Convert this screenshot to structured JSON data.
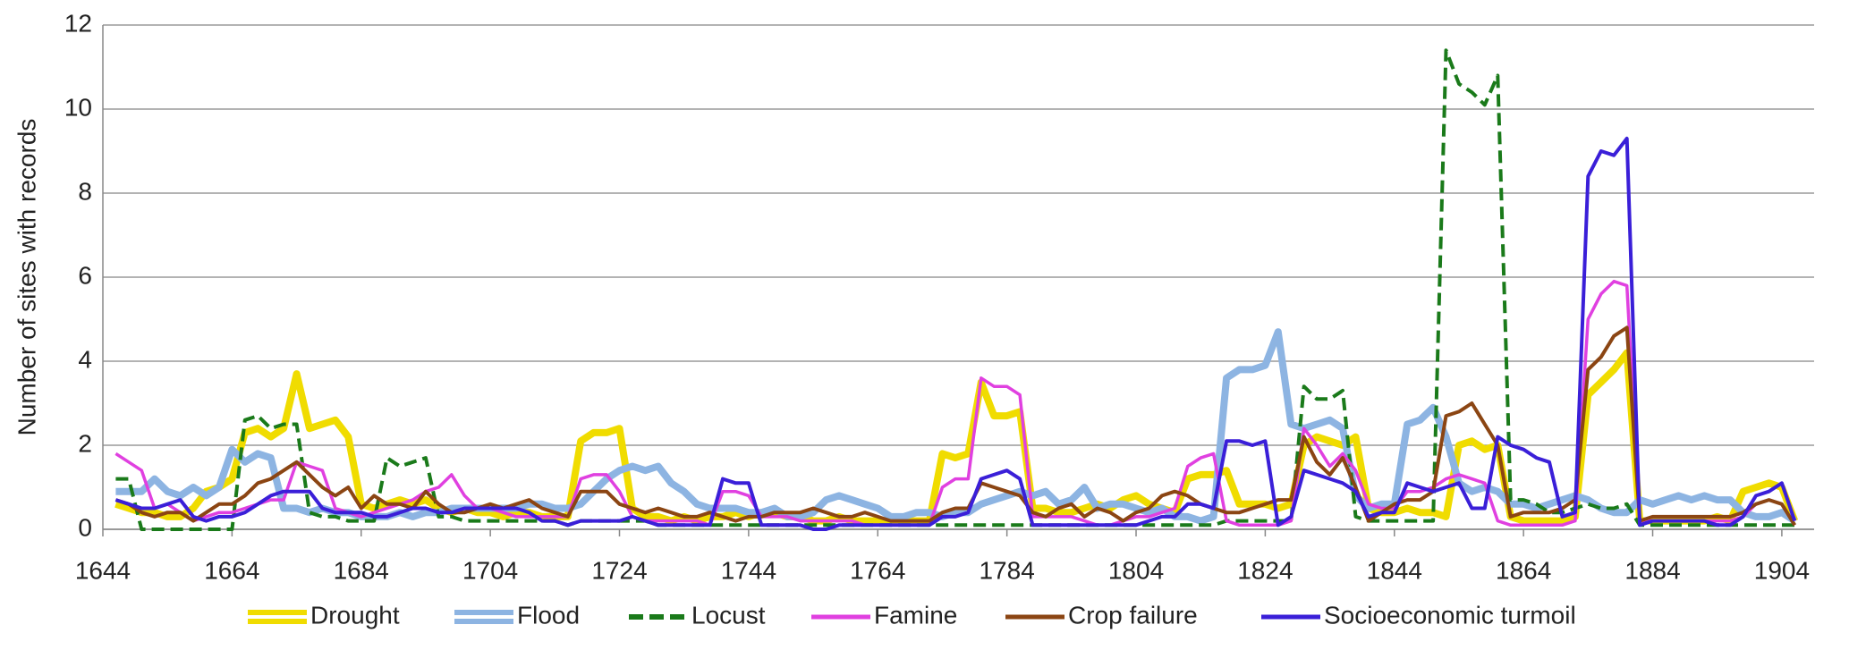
{
  "chart_data": {
    "type": "line",
    "y_label": "Number of sites with records",
    "xlim": [
      1644,
      1909
    ],
    "ylim": [
      0,
      12
    ],
    "xticks": [
      1644,
      1664,
      1684,
      1704,
      1724,
      1744,
      1764,
      1784,
      1804,
      1824,
      1844,
      1864,
      1884,
      1904
    ],
    "yticks": [
      0,
      2,
      4,
      6,
      8,
      10,
      12
    ],
    "grid": true,
    "legend": "bottom",
    "x": [
      1646,
      1648,
      1650,
      1652,
      1654,
      1656,
      1658,
      1660,
      1662,
      1664,
      1666,
      1668,
      1670,
      1672,
      1674,
      1676,
      1678,
      1680,
      1682,
      1684,
      1686,
      1688,
      1690,
      1692,
      1694,
      1696,
      1698,
      1700,
      1702,
      1704,
      1706,
      1708,
      1710,
      1712,
      1714,
      1716,
      1718,
      1720,
      1722,
      1724,
      1726,
      1728,
      1730,
      1732,
      1734,
      1736,
      1738,
      1740,
      1742,
      1744,
      1746,
      1748,
      1750,
      1752,
      1754,
      1756,
      1758,
      1760,
      1762,
      1764,
      1766,
      1768,
      1770,
      1772,
      1774,
      1776,
      1778,
      1780,
      1782,
      1784,
      1786,
      1788,
      1790,
      1792,
      1794,
      1796,
      1798,
      1800,
      1802,
      1804,
      1806,
      1808,
      1810,
      1812,
      1814,
      1816,
      1818,
      1820,
      1822,
      1824,
      1826,
      1828,
      1830,
      1832,
      1834,
      1836,
      1838,
      1840,
      1842,
      1844,
      1846,
      1848,
      1850,
      1852,
      1854,
      1856,
      1858,
      1860,
      1862,
      1864,
      1866,
      1868,
      1870,
      1872,
      1874,
      1876,
      1878,
      1880,
      1882,
      1884,
      1886,
      1888,
      1890,
      1892,
      1894,
      1896,
      1898,
      1900,
      1902,
      1904,
      1906
    ],
    "series": [
      {
        "name": "Drought",
        "color": "#f0dc00",
        "style": "double",
        "values": [
          0.6,
          0.5,
          0.4,
          0.4,
          0.3,
          0.3,
          0.5,
          0.9,
          1.0,
          1.2,
          2.3,
          2.4,
          2.2,
          2.4,
          3.7,
          2.4,
          2.5,
          2.6,
          2.2,
          0.6,
          0.5,
          0.6,
          0.7,
          0.6,
          0.7,
          0.5,
          0.4,
          0.5,
          0.4,
          0.4,
          0.3,
          0.4,
          0.4,
          0.3,
          0.3,
          0.3,
          2.1,
          2.3,
          2.3,
          2.4,
          0.5,
          0.3,
          0.3,
          0.2,
          0.3,
          0.2,
          0.3,
          0.3,
          0.4,
          0.3,
          0.4,
          0.4,
          0.3,
          0.3,
          0.2,
          0.2,
          0.3,
          0.2,
          0.2,
          0.2,
          0.2,
          0.2,
          0.2,
          0.2,
          1.8,
          1.7,
          1.8,
          3.5,
          2.7,
          2.7,
          2.8,
          0.5,
          0.5,
          0.4,
          0.4,
          0.5,
          0.6,
          0.5,
          0.7,
          0.8,
          0.6,
          0.5,
          0.4,
          1.2,
          1.3,
          1.3,
          1.4,
          0.6,
          0.6,
          0.6,
          0.5,
          0.6,
          2.0,
          2.2,
          2.1,
          2.0,
          2.2,
          0.5,
          0.4,
          0.4,
          0.5,
          0.4,
          0.4,
          0.3,
          2.0,
          2.1,
          1.9,
          2.0,
          0.3,
          0.2,
          0.2,
          0.2,
          0.2,
          0.3,
          3.2,
          3.5,
          3.8,
          4.2,
          0.2,
          0.2,
          0.2,
          0.2,
          0.2,
          0.2,
          0.3,
          0.2,
          0.9,
          1.0,
          1.1,
          1.0,
          0.2
        ]
      },
      {
        "name": "Flood",
        "color": "#8db4e2",
        "style": "double",
        "values": [
          0.9,
          0.9,
          0.9,
          1.2,
          0.9,
          0.8,
          1.0,
          0.8,
          1.0,
          1.9,
          1.6,
          1.8,
          1.7,
          0.5,
          0.5,
          0.4,
          0.5,
          0.4,
          0.4,
          0.3,
          0.3,
          0.3,
          0.4,
          0.3,
          0.4,
          0.4,
          0.5,
          0.5,
          0.5,
          0.5,
          0.5,
          0.5,
          0.6,
          0.6,
          0.5,
          0.5,
          0.6,
          0.9,
          1.2,
          1.4,
          1.5,
          1.4,
          1.5,
          1.1,
          0.9,
          0.6,
          0.5,
          0.5,
          0.5,
          0.4,
          0.4,
          0.5,
          0.3,
          0.3,
          0.4,
          0.7,
          0.8,
          0.7,
          0.6,
          0.5,
          0.3,
          0.3,
          0.4,
          0.4,
          0.3,
          0.4,
          0.4,
          0.6,
          0.7,
          0.8,
          0.9,
          0.8,
          0.9,
          0.6,
          0.7,
          1.0,
          0.5,
          0.6,
          0.6,
          0.5,
          0.4,
          0.5,
          0.3,
          0.3,
          0.2,
          0.3,
          3.6,
          3.8,
          3.8,
          3.9,
          4.7,
          2.5,
          2.4,
          2.5,
          2.6,
          2.4,
          0.8,
          0.5,
          0.6,
          0.6,
          2.5,
          2.6,
          2.9,
          2.2,
          1.1,
          0.9,
          1.0,
          0.9,
          0.6,
          0.6,
          0.5,
          0.6,
          0.7,
          0.8,
          0.7,
          0.5,
          0.4,
          0.4,
          0.7,
          0.6,
          0.7,
          0.8,
          0.7,
          0.8,
          0.7,
          0.7,
          0.4,
          0.3,
          0.3,
          0.4,
          0.2
        ]
      },
      {
        "name": "Locust",
        "color": "#1a7a1a",
        "style": "dashed",
        "values": [
          1.2,
          1.2,
          0,
          0,
          0,
          0,
          0,
          0,
          0,
          0,
          2.6,
          2.7,
          2.4,
          2.5,
          2.5,
          0.4,
          0.3,
          0.3,
          0.2,
          0.2,
          0.2,
          1.7,
          1.5,
          1.6,
          1.7,
          0.3,
          0.3,
          0.2,
          0.2,
          0.2,
          0.2,
          0.2,
          0.2,
          0.2,
          0.2,
          0.1,
          0.2,
          0.2,
          0.2,
          0.2,
          0.2,
          0.2,
          0.1,
          0.1,
          0.1,
          0.1,
          0.1,
          0.1,
          0.1,
          0.1,
          0.1,
          0.1,
          0.1,
          0.1,
          0.1,
          0.1,
          0.1,
          0.1,
          0.1,
          0.1,
          0.1,
          0.1,
          0.1,
          0.1,
          0.1,
          0.1,
          0.1,
          0.1,
          0.1,
          0.1,
          0.1,
          0.1,
          0.1,
          0.1,
          0.1,
          0.1,
          0.1,
          0.1,
          0.1,
          0.1,
          0.1,
          0.1,
          0.1,
          0.1,
          0.1,
          0.1,
          0.2,
          0.2,
          0.2,
          0.2,
          0.2,
          0.2,
          3.4,
          3.1,
          3.1,
          3.3,
          0.3,
          0.2,
          0.2,
          0.2,
          0.2,
          0.2,
          0.2,
          11.4,
          10.6,
          10.4,
          10.1,
          10.8,
          0.7,
          0.7,
          0.6,
          0.4,
          0.4,
          0.5,
          0.6,
          0.5,
          0.5,
          0.6,
          0.1,
          0.1,
          0.1,
          0.1,
          0.1,
          0.1,
          0.1,
          0.1,
          0.1,
          0.1,
          0.1,
          0.1,
          0.1
        ]
      },
      {
        "name": "Famine",
        "color": "#e040e0",
        "style": "solid",
        "values": [
          1.8,
          1.6,
          1.4,
          0.5,
          0.6,
          0.4,
          0.2,
          0.3,
          0.4,
          0.4,
          0.5,
          0.6,
          0.7,
          0.7,
          1.6,
          1.5,
          1.4,
          0.5,
          0.4,
          0.3,
          0.4,
          0.5,
          0.6,
          0.7,
          0.9,
          1.0,
          1.3,
          0.8,
          0.5,
          0.5,
          0.4,
          0.3,
          0.3,
          0.3,
          0.3,
          0.3,
          1.2,
          1.3,
          1.3,
          0.9,
          0.3,
          0.2,
          0.2,
          0.2,
          0.2,
          0.2,
          0.1,
          0.9,
          0.9,
          0.8,
          0.3,
          0.3,
          0.3,
          0.2,
          0.2,
          0.2,
          0.2,
          0.2,
          0.1,
          0.1,
          0.1,
          0.1,
          0.1,
          0.1,
          1.0,
          1.2,
          1.2,
          3.6,
          3.4,
          3.4,
          3.2,
          0.3,
          0.3,
          0.3,
          0.3,
          0.2,
          0.1,
          0.1,
          0.2,
          0.3,
          0.3,
          0.4,
          0.5,
          1.5,
          1.7,
          1.8,
          0.2,
          0.1,
          0.1,
          0.1,
          0.1,
          0.2,
          2.4,
          2.0,
          1.5,
          1.8,
          1.4,
          0.6,
          0.5,
          0.5,
          0.9,
          0.9,
          1.0,
          1.2,
          1.3,
          1.2,
          1.1,
          0.2,
          0.1,
          0.1,
          0.1,
          0.1,
          0.1,
          0.2,
          5.0,
          5.6,
          5.9,
          5.8,
          0.2,
          0.2,
          0.2,
          0.2,
          0.2,
          0.2,
          0.2,
          0.2,
          0.3,
          0.6,
          0.7,
          0.6,
          0.1
        ]
      },
      {
        "name": "Crop failure",
        "color": "#8b4513",
        "style": "solid",
        "values": [
          0.7,
          0.6,
          0.4,
          0.3,
          0.4,
          0.4,
          0.2,
          0.4,
          0.6,
          0.6,
          0.8,
          1.1,
          1.2,
          1.4,
          1.6,
          1.3,
          1.0,
          0.8,
          1.0,
          0.5,
          0.8,
          0.6,
          0.6,
          0.5,
          0.9,
          0.6,
          0.4,
          0.4,
          0.5,
          0.6,
          0.5,
          0.6,
          0.7,
          0.5,
          0.4,
          0.3,
          0.9,
          0.9,
          0.9,
          0.6,
          0.5,
          0.4,
          0.5,
          0.4,
          0.3,
          0.3,
          0.4,
          0.3,
          0.2,
          0.3,
          0.3,
          0.4,
          0.4,
          0.4,
          0.5,
          0.4,
          0.3,
          0.3,
          0.4,
          0.3,
          0.2,
          0.2,
          0.2,
          0.2,
          0.4,
          0.5,
          0.5,
          1.1,
          1.0,
          0.9,
          0.8,
          0.4,
          0.3,
          0.5,
          0.6,
          0.3,
          0.5,
          0.4,
          0.2,
          0.4,
          0.5,
          0.8,
          0.9,
          0.8,
          0.6,
          0.5,
          0.4,
          0.4,
          0.5,
          0.6,
          0.7,
          0.7,
          2.2,
          1.6,
          1.3,
          1.7,
          1.0,
          0.2,
          0.4,
          0.6,
          0.7,
          0.7,
          0.9,
          2.7,
          2.8,
          3.0,
          2.5,
          2.0,
          0.3,
          0.4,
          0.4,
          0.4,
          0.5,
          0.7,
          3.8,
          4.1,
          4.6,
          4.8,
          0.2,
          0.3,
          0.3,
          0.3,
          0.3,
          0.3,
          0.3,
          0.3,
          0.4,
          0.6,
          0.7,
          0.6,
          0.1
        ]
      },
      {
        "name": "Socioeconomic turmoil",
        "color": "#3a1fd8",
        "style": "solid",
        "values": [
          0.7,
          0.6,
          0.5,
          0.5,
          0.6,
          0.7,
          0.3,
          0.2,
          0.3,
          0.3,
          0.4,
          0.6,
          0.8,
          0.9,
          0.9,
          0.9,
          0.5,
          0.4,
          0.4,
          0.4,
          0.3,
          0.3,
          0.4,
          0.5,
          0.5,
          0.4,
          0.4,
          0.5,
          0.5,
          0.5,
          0.5,
          0.5,
          0.4,
          0.2,
          0.2,
          0.1,
          0.2,
          0.2,
          0.2,
          0.2,
          0.3,
          0.2,
          0.1,
          0.1,
          0.1,
          0.1,
          0.1,
          1.2,
          1.1,
          1.1,
          0.1,
          0.1,
          0.1,
          0.1,
          0.0,
          0.0,
          0.1,
          0.1,
          0.1,
          0.1,
          0.1,
          0.1,
          0.1,
          0.1,
          0.3,
          0.3,
          0.4,
          1.2,
          1.3,
          1.4,
          1.2,
          0.1,
          0.1,
          0.1,
          0.1,
          0.1,
          0.1,
          0.1,
          0.1,
          0.1,
          0.2,
          0.3,
          0.3,
          0.6,
          0.6,
          0.5,
          2.1,
          2.1,
          2.0,
          2.1,
          0.1,
          0.3,
          1.4,
          1.3,
          1.2,
          1.1,
          0.9,
          0.3,
          0.4,
          0.4,
          1.1,
          1.0,
          0.9,
          1.0,
          1.1,
          0.5,
          0.5,
          2.2,
          2.0,
          1.9,
          1.7,
          1.6,
          0.3,
          0.4,
          8.4,
          9.0,
          8.9,
          9.3,
          0.1,
          0.2,
          0.2,
          0.2,
          0.2,
          0.2,
          0.1,
          0.1,
          0.3,
          0.8,
          0.9,
          1.1,
          0.2
        ]
      }
    ]
  }
}
